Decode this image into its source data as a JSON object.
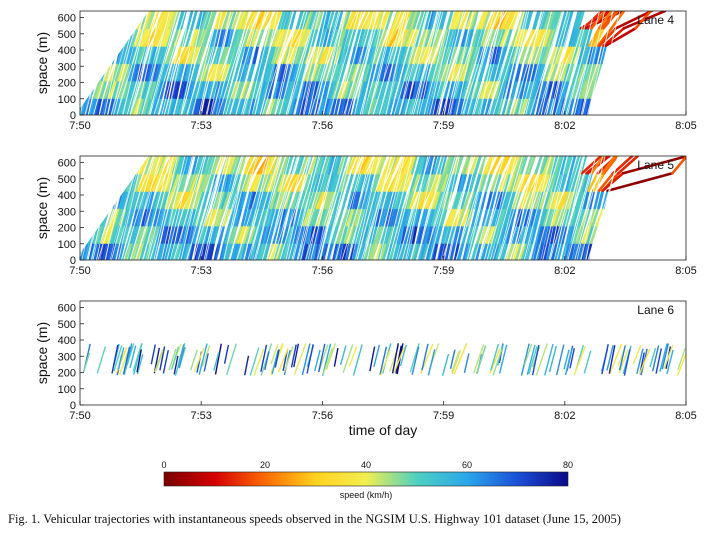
{
  "chart_data": [
    {
      "type": "heatmap",
      "name": "lane-4",
      "panel_label": "Lane 4",
      "ylabel": "space (m)",
      "xlabel": "",
      "xticks": [
        "7:50",
        "7:53",
        "7:56",
        "7:59",
        "8:02",
        "8:05"
      ],
      "yticks": [
        "0",
        "100",
        "200",
        "300",
        "400",
        "500",
        "600"
      ],
      "xlim_minutes": [
        0,
        15
      ],
      "ylim": [
        0,
        640
      ],
      "description_series": [
        {
          "name": "free-flow speed band",
          "minutes_range": [
            0,
            12.5
          ],
          "speed_kmh_range": [
            35,
            80
          ]
        },
        {
          "name": "congestion wave",
          "minutes_range": [
            12.5,
            15
          ],
          "speed_kmh_range": [
            0,
            30
          ]
        }
      ]
    },
    {
      "type": "heatmap",
      "name": "lane-5",
      "panel_label": "Lane 5",
      "ylabel": "space (m)",
      "xlabel": "",
      "xticks": [
        "7:50",
        "7:53",
        "7:56",
        "7:59",
        "8:02",
        "8:05"
      ],
      "yticks": [
        "0",
        "100",
        "200",
        "300",
        "400",
        "500",
        "600"
      ],
      "xlim_minutes": [
        0,
        15
      ],
      "ylim": [
        0,
        640
      ],
      "description_series": [
        {
          "name": "free-flow speed band",
          "minutes_range": [
            0,
            12.5
          ],
          "speed_kmh_range": [
            35,
            80
          ]
        },
        {
          "name": "congestion wave",
          "minutes_range": [
            12.5,
            15
          ],
          "speed_kmh_range": [
            0,
            30
          ]
        }
      ]
    },
    {
      "type": "heatmap",
      "name": "lane-6",
      "panel_label": "Lane 6",
      "ylabel": "space (m)",
      "xlabel": "time of day",
      "xticks": [
        "7:50",
        "7:53",
        "7:56",
        "7:59",
        "8:02",
        "8:05"
      ],
      "yticks": [
        "0",
        "100",
        "200",
        "300",
        "400",
        "500",
        "600"
      ],
      "xlim_minutes": [
        0,
        15
      ],
      "ylim": [
        0,
        640
      ],
      "space_range_m": [
        180,
        380
      ],
      "description_series": [
        {
          "name": "sparse trajectories (auxiliary lane)",
          "minutes_range": [
            0,
            15
          ],
          "speed_kmh_range": [
            30,
            80
          ]
        }
      ]
    }
  ],
  "colorbar": {
    "ticks": [
      "0",
      "20",
      "40",
      "60",
      "80"
    ],
    "range": [
      0,
      80
    ],
    "label": "speed (km/h)",
    "colors": [
      "#7a0000",
      "#d40000",
      "#ff6a00",
      "#ffd21e",
      "#f2ee50",
      "#4fd0c0",
      "#2aa7ea",
      "#1b4fd8",
      "#0a0a88"
    ]
  },
  "caption": "Fig. 1. Vehicular trajectories with instantaneous speeds observed in the NGSIM U.S. Highway 101 dataset (June 15, 2005)"
}
